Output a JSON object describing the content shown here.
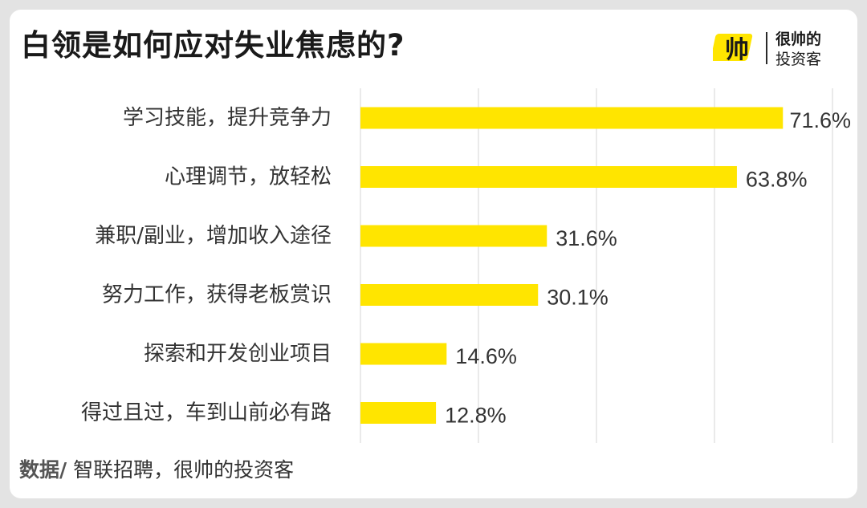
{
  "title": "白领是如何应对失业焦虑的?",
  "logo": {
    "mark_text": "帅",
    "name": "很帅的",
    "sub": "投资客"
  },
  "footer": {
    "label": "数据/",
    "source": " 智联招聘，很帅的投资客"
  },
  "colors": {
    "bar": "#FFE500",
    "grid": "#d6d6d6",
    "text": "#333333"
  },
  "chart_data": {
    "type": "bar",
    "orientation": "horizontal",
    "categories": [
      "学习技能，提升竞争力",
      "心理调节，放轻松",
      "兼职/副业，增加收入途径",
      "努力工作，获得老板赏识",
      "探索和开发创业项目",
      "得过且过，车到山前必有路"
    ],
    "values": [
      71.6,
      63.8,
      31.6,
      30.1,
      14.6,
      12.8
    ],
    "value_labels": [
      "71.6%",
      "63.8%",
      "31.6%",
      "30.1%",
      "14.6%",
      "12.8%"
    ],
    "xlim": [
      0,
      80
    ],
    "grid": true,
    "grid_step": 20
  }
}
